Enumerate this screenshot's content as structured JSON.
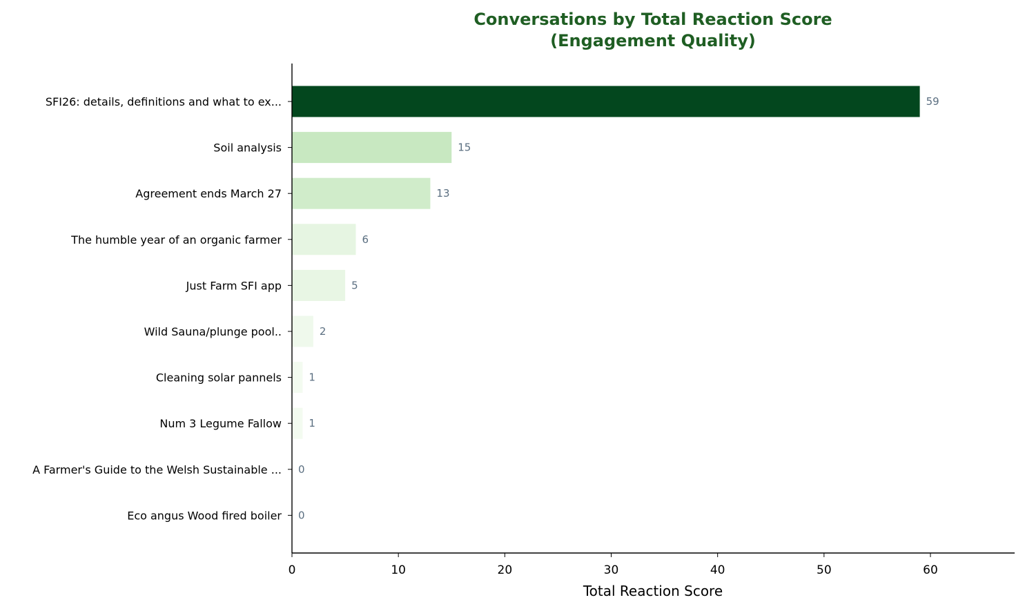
{
  "chart_data": {
    "type": "bar",
    "orientation": "horizontal",
    "title_lines": [
      "Conversations by Total Reaction Score",
      "(Engagement Quality)"
    ],
    "xlabel": "Total Reaction Score",
    "ylabel": "",
    "xlim": [
      0,
      68
    ],
    "xticks": [
      0,
      10,
      20,
      30,
      40,
      50,
      60
    ],
    "grid": false,
    "categories": [
      "SFI26: details, definitions and what to ex...",
      "Soil analysis",
      "Agreement ends March 27",
      "The humble year of an organic farmer",
      "Just Farm SFI app",
      "Wild Sauna/plunge pool..",
      "Cleaning solar pannels",
      "Num 3 Legume Fallow",
      "A Farmer's Guide to the Welsh Sustainable ...",
      "Eco angus Wood fired boiler"
    ],
    "values": [
      59,
      15,
      13,
      6,
      5,
      2,
      1,
      1,
      0,
      0
    ],
    "bar_colors": [
      "#03471e",
      "#c8e8c1",
      "#d0ecca",
      "#e6f5e2",
      "#e8f6e4",
      "#eff9ec",
      "#f3fbf0",
      "#f3fbf0",
      "#f7fcf5",
      "#f7fcf5"
    ],
    "title_color": "#1f5e23",
    "value_label_color": "#5a6e80"
  }
}
